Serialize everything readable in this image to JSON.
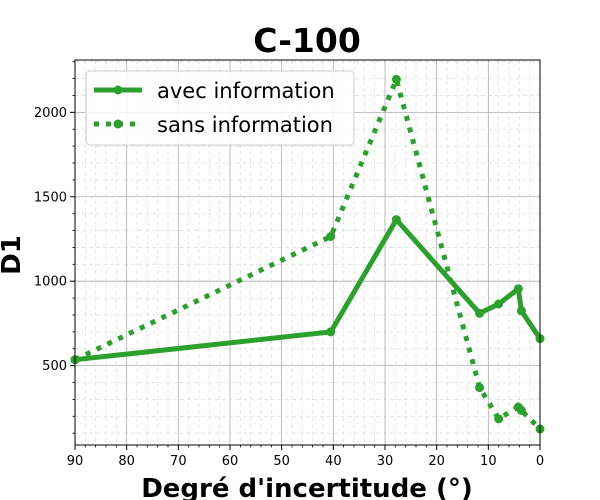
{
  "chart_data": {
    "type": "line",
    "title": "C-100",
    "xlabel": "Degré d'incertitude (°)",
    "ylabel": "D1",
    "xlim": [
      90,
      0
    ],
    "ylim": [
      30,
      2310
    ],
    "x_ticks": [
      90,
      80,
      70,
      60,
      50,
      40,
      30,
      20,
      10,
      0
    ],
    "y_ticks": [
      500,
      1000,
      1500,
      2000
    ],
    "x_ticks_inverted": true,
    "grid": true,
    "minor_grid": true,
    "legend_position": "top-left",
    "color": "#2ca02c",
    "series": [
      {
        "name": "avec information",
        "style": "solid",
        "x": [
          90,
          40.5,
          27.8,
          11.7,
          8.0,
          4.2,
          3.6,
          0
        ],
        "y": [
          535,
          700,
          1365,
          810,
          865,
          955,
          825,
          660
        ]
      },
      {
        "name": "sans information",
        "style": "dotted",
        "x": [
          90,
          40.5,
          27.8,
          11.7,
          8.0,
          4.2,
          3.6,
          0
        ],
        "y": [
          535,
          1265,
          2195,
          370,
          185,
          255,
          235,
          125
        ]
      }
    ]
  }
}
